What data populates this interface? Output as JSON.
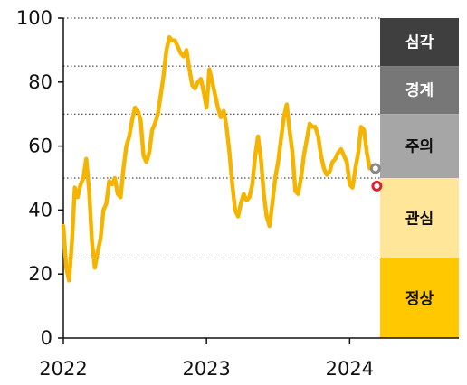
{
  "chart_data": {
    "type": "line",
    "title": "",
    "xlabel": "",
    "ylabel": "",
    "ylim": [
      0,
      100
    ],
    "xlim": [
      2022.0,
      2024.2
    ],
    "y_ticks": [
      0,
      20,
      40,
      60,
      80,
      100
    ],
    "y_tick_labels": [
      "0",
      "20",
      "40",
      "60",
      "80",
      "100"
    ],
    "x_ticks": [
      2022,
      2023,
      2024
    ],
    "x_tick_labels": [
      "2022",
      "2023",
      "2024"
    ],
    "grid": "dotted horizontal lines at zone thresholds",
    "threshold_lines": [
      25,
      50,
      70,
      85,
      100
    ],
    "series": [
      {
        "color": "#F5B400",
        "x": [
          2022.0,
          2022.02,
          2022.04,
          2022.06,
          2022.08,
          2022.1,
          2022.12,
          2022.14,
          2022.16,
          2022.18,
          2022.2,
          2022.22,
          2022.24,
          2022.26,
          2022.28,
          2022.3,
          2022.32,
          2022.34,
          2022.36,
          2022.38,
          2022.4,
          2022.42,
          2022.44,
          2022.46,
          2022.48,
          2022.5,
          2022.52,
          2022.54,
          2022.56,
          2022.58,
          2022.6,
          2022.62,
          2022.64,
          2022.66,
          2022.68,
          2022.7,
          2022.72,
          2022.74,
          2022.76,
          2022.78,
          2022.8,
          2022.82,
          2022.84,
          2022.86,
          2022.88,
          2022.9,
          2022.92,
          2022.94,
          2022.96,
          2022.98,
          2023.0,
          2023.02,
          2023.04,
          2023.06,
          2023.08,
          2023.1,
          2023.12,
          2023.14,
          2023.16,
          2023.18,
          2023.2,
          2023.22,
          2023.24,
          2023.26,
          2023.28,
          2023.3,
          2023.32,
          2023.34,
          2023.36,
          2023.38,
          2023.4,
          2023.42,
          2023.44,
          2023.46,
          2023.48,
          2023.5,
          2023.52,
          2023.54,
          2023.56,
          2023.58,
          2023.6,
          2023.62,
          2023.64,
          2023.66,
          2023.68,
          2023.7,
          2023.72,
          2023.74,
          2023.76,
          2023.78,
          2023.8,
          2023.82,
          2023.84,
          2023.86,
          2023.88,
          2023.9,
          2023.92,
          2023.94,
          2023.96,
          2023.98,
          2024.0,
          2024.02,
          2024.04,
          2024.06,
          2024.08,
          2024.1,
          2024.12,
          2024.14
        ],
        "y": [
          35,
          22,
          18,
          30,
          47,
          44,
          48,
          50,
          56,
          46,
          30,
          22,
          27,
          31,
          40,
          42,
          49,
          48,
          50,
          45,
          44,
          53,
          60,
          63,
          68,
          72,
          71,
          68,
          57,
          55,
          58,
          65,
          67,
          70,
          76,
          82,
          90,
          94,
          93,
          93,
          91,
          89,
          88,
          90,
          84,
          79,
          78,
          80,
          81,
          77,
          72,
          84,
          80,
          76,
          72,
          69,
          71,
          66,
          58,
          48,
          40,
          38,
          42,
          45,
          43,
          44,
          48,
          57,
          63,
          56,
          45,
          38,
          35,
          42,
          50,
          55,
          62,
          69,
          73,
          65,
          58,
          46,
          45,
          50,
          57,
          62,
          67,
          66,
          66,
          63,
          57,
          53,
          51,
          52,
          55,
          56,
          58,
          59,
          57,
          55,
          48,
          47,
          53,
          58,
          66,
          65,
          58,
          53
        ]
      }
    ],
    "end_markers": [
      {
        "x": 2024.18,
        "y": 53,
        "color": "#888888"
      },
      {
        "x": 2024.19,
        "y": 47.5,
        "color": "#E0202A"
      }
    ],
    "zones": [
      {
        "label": "심각",
        "from": 85,
        "to": 100,
        "color": "#3F3F3F",
        "text_color": "#ffffff"
      },
      {
        "label": "경계",
        "from": 70,
        "to": 85,
        "color": "#777777",
        "text_color": "#ffffff"
      },
      {
        "label": "주의",
        "from": 50,
        "to": 70,
        "color": "#A6A6A6",
        "text_color": "#111111"
      },
      {
        "label": "관심",
        "from": 25,
        "to": 50,
        "color": "#FFE699",
        "text_color": "#111111"
      },
      {
        "label": "정상",
        "from": 0,
        "to": 25,
        "color": "#FFC800",
        "text_color": "#111111"
      }
    ],
    "legend": "right"
  }
}
